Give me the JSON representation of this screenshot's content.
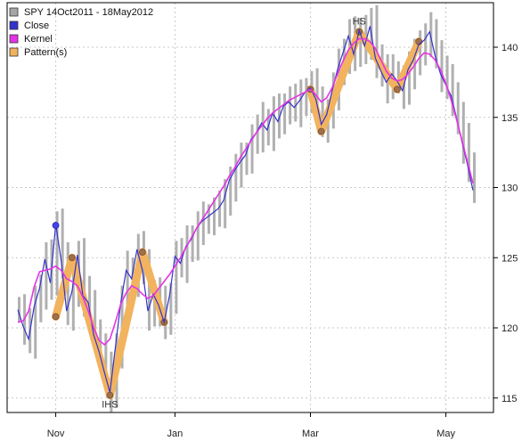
{
  "chart_data": {
    "type": "line",
    "title": "",
    "xlabel": "",
    "ylabel": "",
    "ylim": [
      114,
      143
    ],
    "x_ticks": [
      "Nov",
      "Jan",
      "Mar",
      "May"
    ],
    "y_ticks": [
      115,
      120,
      125,
      130,
      135,
      140
    ],
    "grid": true,
    "legend_position": "top-left",
    "legend": [
      {
        "label": "SPY 14Oct2011 - 18May2012",
        "color": "#a6a6a6"
      },
      {
        "label": "Close",
        "color": "#3333cc"
      },
      {
        "label": "Kernel",
        "color": "#e633e6"
      },
      {
        "label": "Pattern(s)",
        "color": "#f2b35e"
      }
    ],
    "series": [
      {
        "name": "Close",
        "color": "#3333cc",
        "values": [
          121.3,
          120.1,
          119.2,
          121.5,
          122.8,
          124.9,
          123.2,
          127.4,
          124.8,
          121.2,
          122.6,
          125.2,
          122.3,
          121.8,
          119.5,
          118.3,
          116.8,
          115.4,
          118.6,
          121.8,
          124.1,
          123.5,
          125.6,
          124.1,
          121.2,
          122.4,
          121.6,
          120.4,
          122.3,
          125.1,
          124.6,
          125.8,
          126.3,
          127.1,
          127.6,
          127.9,
          128.2,
          128.5,
          129.1,
          130.5,
          131.2,
          131.8,
          132.3,
          133.4,
          133.9,
          134.6,
          134.1,
          135.3,
          134.7,
          135.8,
          136.1,
          135.7,
          136.2,
          136.8,
          137.1,
          136.3,
          134.5,
          135.2,
          136.9,
          138.4,
          139.6,
          140.8,
          139.5,
          141.2,
          140.1,
          141.5,
          139.2,
          138.3,
          137.5,
          138.1,
          137.6,
          136.9,
          138.4,
          139.1,
          140.2,
          140.5,
          141.1,
          139.4,
          138.1,
          137.3,
          136.5,
          134.9,
          133.2,
          131.6,
          129.8
        ]
      },
      {
        "name": "Kernel",
        "color": "#e633e6",
        "values": [
          120.4,
          120.5,
          121.2,
          122.9,
          124.0,
          124.1,
          124.2,
          124.4,
          124.1,
          123.5,
          123.3,
          123.0,
          122.2,
          121.2,
          120.0,
          119.1,
          118.8,
          119.2,
          120.4,
          121.7,
          122.5,
          123.0,
          122.8,
          122.4,
          122.1,
          122.3,
          122.8,
          123.3,
          123.8,
          124.4,
          125.0,
          125.7,
          126.4,
          127.1,
          127.7,
          128.3,
          128.9,
          129.5,
          130.1,
          130.8,
          131.4,
          132.1,
          132.7,
          133.3,
          133.9,
          134.4,
          134.9,
          135.3,
          135.6,
          135.9,
          136.2,
          136.4,
          136.6,
          136.8,
          137.0,
          136.6,
          136.1,
          136.4,
          137.1,
          138.1,
          139.0,
          139.8,
          140.3,
          140.6,
          140.6,
          140.4,
          139.9,
          139.1,
          138.3,
          137.8,
          137.6,
          137.7,
          138.1,
          138.6,
          139.2,
          139.6,
          139.5,
          139.1,
          138.4,
          137.4,
          136.2,
          134.8,
          133.3,
          131.8,
          130.3
        ]
      }
    ],
    "patterns": [
      {
        "name": "IHS",
        "label": "IHS",
        "points": [
          [
            7,
            120.8
          ],
          [
            10,
            125.0
          ],
          [
            17,
            115.2
          ],
          [
            23,
            125.4
          ],
          [
            27,
            120.4
          ]
        ]
      },
      {
        "name": "HS",
        "label": "HS",
        "points": [
          [
            54,
            137.0
          ],
          [
            56,
            134.0
          ],
          [
            63,
            141.1
          ],
          [
            70,
            137.0
          ],
          [
            74,
            140.4
          ]
        ]
      }
    ],
    "marker": {
      "x": 7,
      "y": 127.3
    }
  }
}
